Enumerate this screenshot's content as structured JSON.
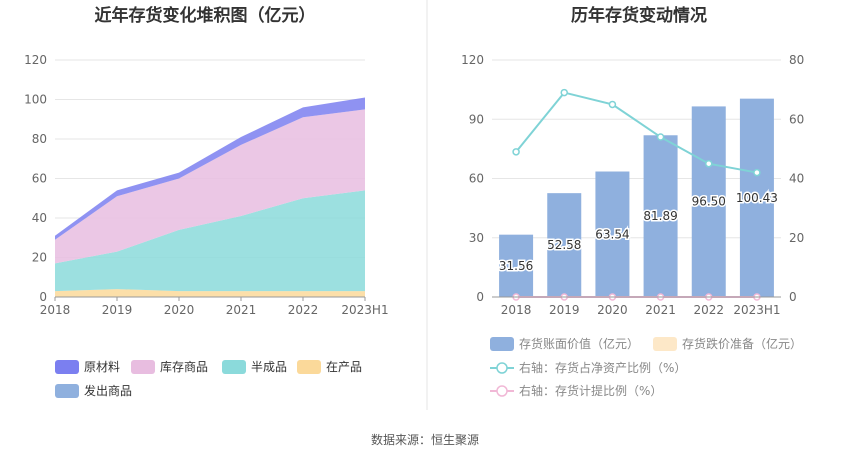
{
  "left_chart": {
    "title": "近年存货变化堆积图（亿元）",
    "legend": [
      {
        "label": "原材料",
        "color": "#7b7ff0"
      },
      {
        "label": "库存商品",
        "color": "#e8bde0"
      },
      {
        "label": "半成品",
        "color": "#8bdadb"
      },
      {
        "label": "在产品",
        "color": "#fbd99a"
      },
      {
        "label": "发出商品",
        "color": "#8fb0de"
      }
    ]
  },
  "right_chart": {
    "title": "历年存货变动情况",
    "legend": [
      {
        "label": "存货账面价值（亿元）",
        "color": "#8fb0de",
        "kind": "box"
      },
      {
        "label": "存货跌价准备（亿元）",
        "color": "#fde8c8",
        "kind": "box"
      },
      {
        "label": "右轴：存货占净资产比例（%）",
        "color": "#7fd3d6",
        "kind": "line"
      },
      {
        "label": "右轴：存货计提比例（%）",
        "color": "#f1b8d6",
        "kind": "line"
      }
    ]
  },
  "chart_data": [
    {
      "type": "area",
      "stacked": true,
      "title": "近年存货变化堆积图（亿元）",
      "categories": [
        "2018",
        "2019",
        "2020",
        "2021",
        "2022",
        "2023H1"
      ],
      "ylim": [
        0,
        120
      ],
      "yticks": [
        0,
        20,
        40,
        60,
        80,
        100,
        120
      ],
      "grid": true,
      "legend_position": "bottom",
      "series": [
        {
          "name": "在产品",
          "values": [
            3,
            4,
            3,
            3,
            3,
            3
          ],
          "color": "#fbd99a"
        },
        {
          "name": "半成品",
          "values": [
            14,
            19,
            31,
            38,
            47,
            51
          ],
          "color": "#8bdadb"
        },
        {
          "name": "库存商品",
          "values": [
            12,
            28,
            26,
            36,
            41,
            41
          ],
          "color": "#e8bde0"
        },
        {
          "name": "原材料",
          "values": [
            2,
            3,
            3,
            4,
            5,
            6
          ],
          "color": "#7b7ff0"
        },
        {
          "name": "发出商品",
          "values": [
            0,
            0,
            0,
            0,
            0,
            0
          ],
          "color": "#8fb0de"
        }
      ]
    },
    {
      "type": "bar",
      "title": "历年存货变动情况",
      "categories": [
        "2018",
        "2019",
        "2020",
        "2021",
        "2022",
        "2023H1"
      ],
      "ylim": [
        0,
        120
      ],
      "yticks": [
        0,
        30,
        60,
        90,
        120
      ],
      "y2lim": [
        0,
        80
      ],
      "y2ticks": [
        0,
        20,
        40,
        60,
        80
      ],
      "grid": true,
      "legend_position": "bottom",
      "series": [
        {
          "name": "存货账面价值（亿元）",
          "type": "bar",
          "axis": "left",
          "color": "#8fb0de",
          "values": [
            31.56,
            52.58,
            63.54,
            81.89,
            96.5,
            100.43
          ],
          "labels": [
            "31.56",
            "52.58",
            "63.54",
            "81.89",
            "96.50",
            "100.43"
          ]
        },
        {
          "name": "存货跌价准备（亿元）",
          "type": "bar",
          "axis": "left",
          "color": "#fde8c8",
          "values": [
            0,
            0,
            0,
            0,
            0,
            0
          ]
        },
        {
          "name": "右轴：存货占净资产比例（%）",
          "type": "line",
          "axis": "right",
          "color": "#7fd3d6",
          "values": [
            49,
            69,
            65,
            54,
            45,
            42
          ]
        },
        {
          "name": "右轴：存货计提比例（%）",
          "type": "line",
          "axis": "right",
          "color": "#f1b8d6",
          "values": [
            0,
            0,
            0,
            0,
            0,
            0
          ]
        }
      ]
    }
  ],
  "footer": {
    "source": "数据来源：恒生聚源"
  }
}
